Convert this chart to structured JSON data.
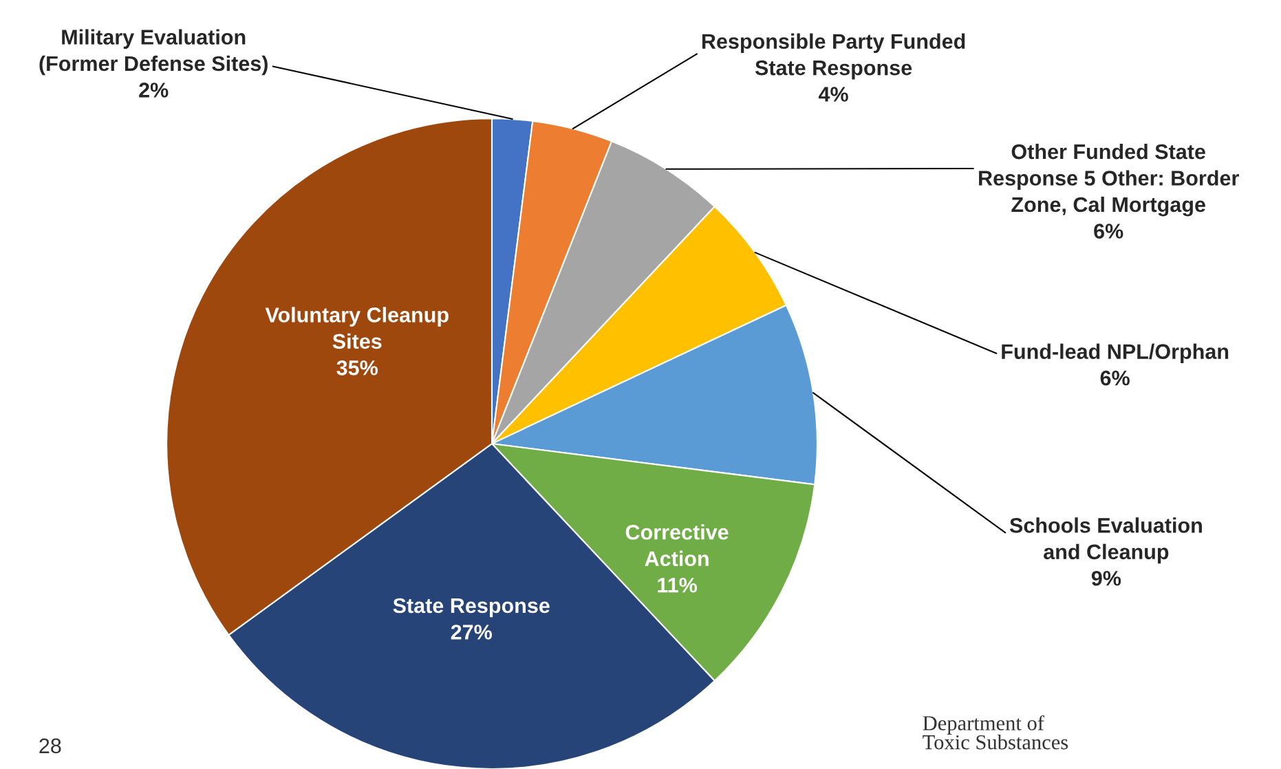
{
  "chart_data": {
    "type": "pie",
    "categories": [
      "Military Evaluation\n(Former Defense Sites)",
      "Responsible Party Funded\nState Response",
      "Other Funded State\nResponse 5 Other: Border\nZone, Cal Mortgage",
      "Fund-lead NPL/Orphan",
      "Schools Evaluation\nand Cleanup",
      "Corrective\nAction",
      "State Response",
      "Voluntary Cleanup\nSites"
    ],
    "values": [
      2,
      4,
      6,
      6,
      9,
      11,
      27,
      35
    ],
    "value_labels": [
      "2%",
      "4%",
      "6%",
      "6%",
      "9%",
      "11%",
      "27%",
      "35%"
    ],
    "colors": [
      "#4472c4",
      "#ed7d31",
      "#a5a5a5",
      "#ffc000",
      "#5b9bd5",
      "#70ad47",
      "#264478",
      "#9e480e"
    ],
    "annotations": [
      "28",
      "Department of\nToxic Substances"
    ]
  }
}
